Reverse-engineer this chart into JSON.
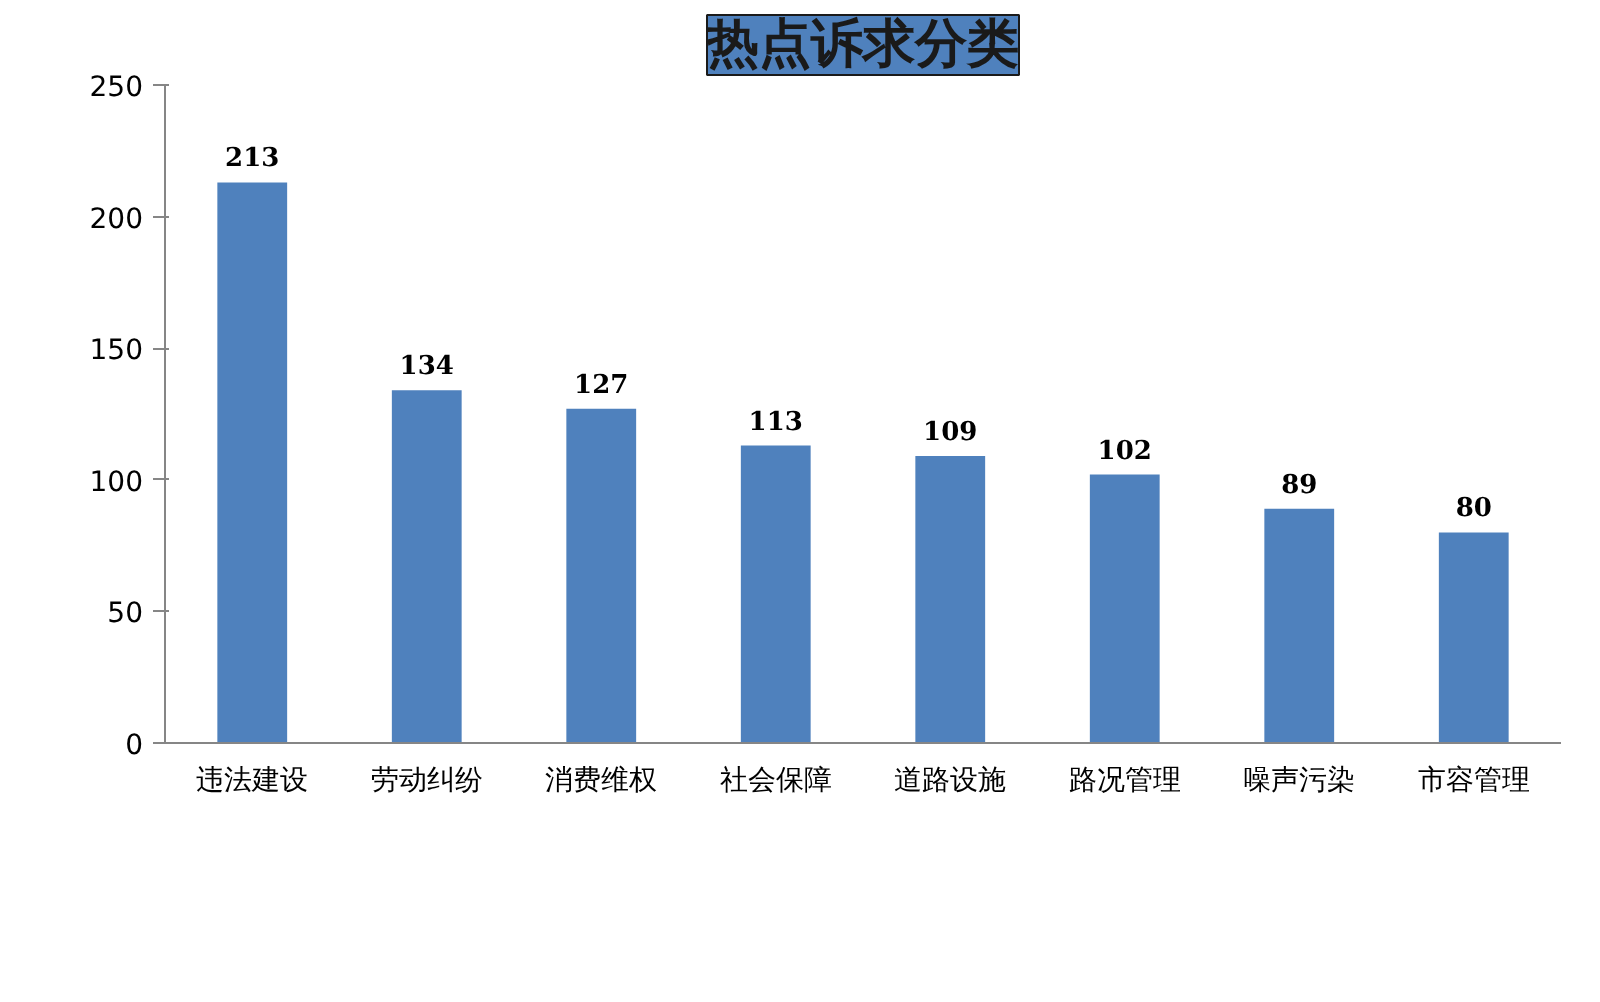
{
  "chart_data": {
    "type": "bar",
    "title": "热点诉求分类",
    "categories": [
      "违法建设",
      "劳动纠纷",
      "消费维权",
      "社会保障",
      "道路设施",
      "路况管理",
      "噪声污染",
      "市容管理"
    ],
    "values": [
      213,
      134,
      127,
      113,
      109,
      102,
      89,
      80
    ],
    "color": "#4f81bd",
    "ylim": [
      0,
      250
    ],
    "yticks": [
      0,
      50,
      100,
      150,
      200,
      250
    ],
    "data_labels": true
  }
}
